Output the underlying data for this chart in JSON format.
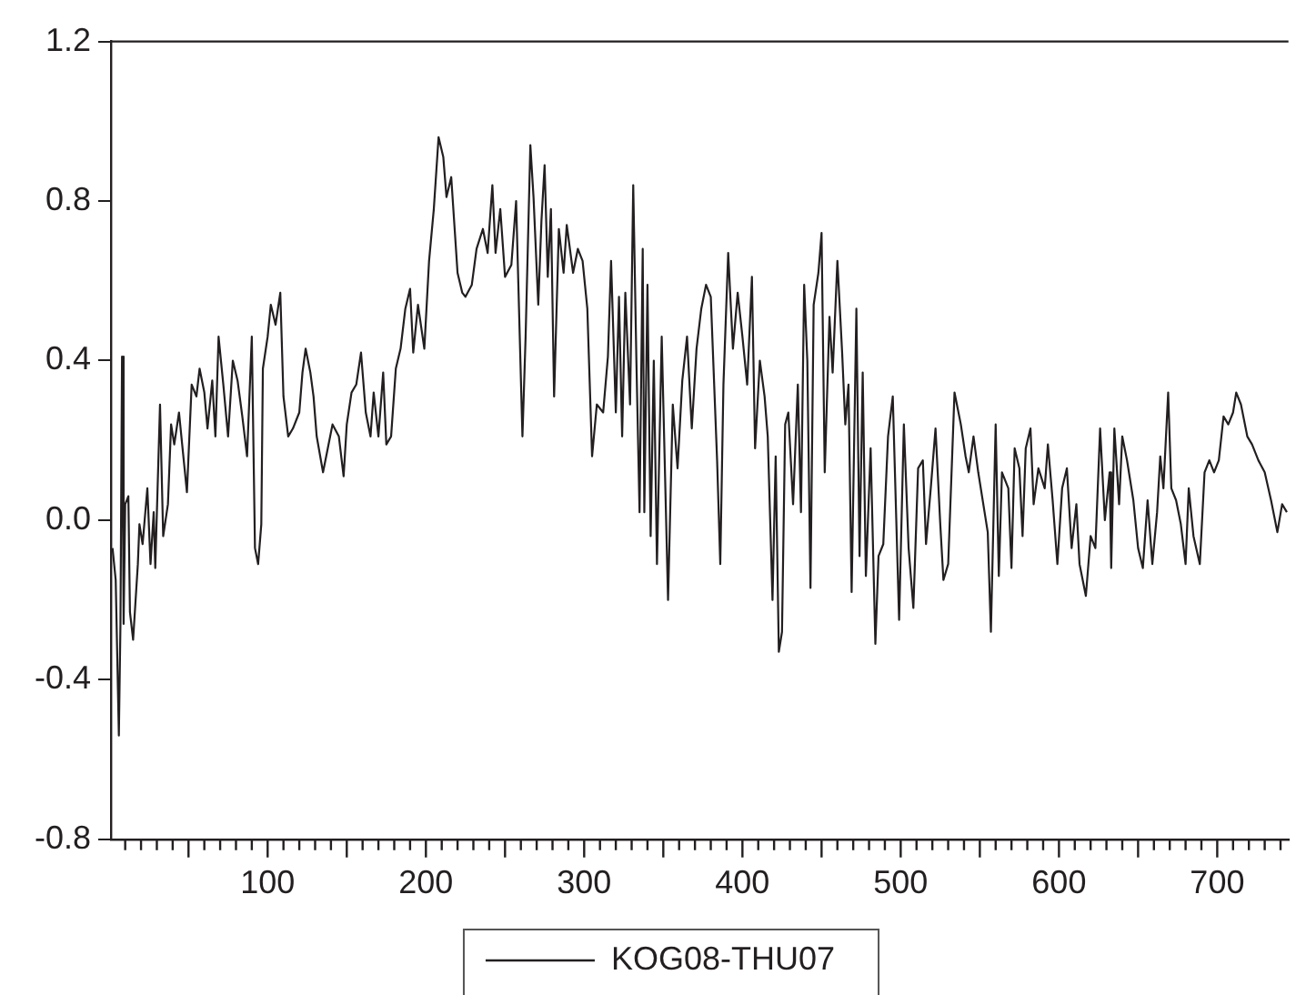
{
  "chart_data": {
    "type": "line",
    "legend": "bottom",
    "grid": false,
    "marker": "none",
    "line_style": "solid",
    "xlim": [
      1,
      745
    ],
    "ylim": [
      -0.8,
      1.2
    ],
    "yticks": [
      {
        "value": -0.8,
        "label": "-0.8"
      },
      {
        "value": -0.4,
        "label": "-0.4"
      },
      {
        "value": 0,
        "label": "0.0"
      },
      {
        "value": 0.4,
        "label": "0.4"
      },
      {
        "value": 0.8,
        "label": "0.8"
      },
      {
        "value": 1.2,
        "label": "1.2"
      }
    ],
    "xticks": [
      {
        "value": 10,
        "label": null
      },
      {
        "value": 20,
        "label": null
      },
      {
        "value": 30,
        "label": null
      },
      {
        "value": 40,
        "label": null
      },
      {
        "value": 50,
        "label": null
      },
      {
        "value": 60,
        "label": null
      },
      {
        "value": 70,
        "label": null
      },
      {
        "value": 80,
        "label": null
      },
      {
        "value": 90,
        "label": null
      },
      100,
      {
        "value": 110,
        "label": null
      },
      {
        "value": 120,
        "label": null
      },
      {
        "value": 130,
        "label": null
      },
      {
        "value": 140,
        "label": null
      },
      {
        "value": 150,
        "label": null
      },
      {
        "value": 160,
        "label": null
      },
      {
        "value": 170,
        "label": null
      },
      {
        "value": 180,
        "label": null
      },
      {
        "value": 190,
        "label": null
      },
      200,
      {
        "value": 210,
        "label": null
      },
      {
        "value": 220,
        "label": null
      },
      {
        "value": 230,
        "label": null
      },
      {
        "value": 240,
        "label": null
      },
      {
        "value": 250,
        "label": null
      },
      {
        "value": 260,
        "label": null
      },
      {
        "value": 270,
        "label": null
      },
      {
        "value": 280,
        "label": null
      },
      {
        "value": 290,
        "label": null
      },
      300,
      {
        "value": 310,
        "label": null
      },
      {
        "value": 320,
        "label": null
      },
      {
        "value": 330,
        "label": null
      },
      {
        "value": 340,
        "label": null
      },
      {
        "value": 350,
        "label": null
      },
      {
        "value": 360,
        "label": null
      },
      {
        "value": 370,
        "label": null
      },
      {
        "value": 380,
        "label": null
      },
      {
        "value": 390,
        "label": null
      },
      400,
      {
        "value": 410,
        "label": null
      },
      {
        "value": 420,
        "label": null
      },
      {
        "value": 430,
        "label": null
      },
      {
        "value": 440,
        "label": null
      },
      {
        "value": 450,
        "label": null
      },
      {
        "value": 460,
        "label": null
      },
      {
        "value": 470,
        "label": null
      },
      {
        "value": 480,
        "label": null
      },
      {
        "value": 490,
        "label": null
      },
      500,
      {
        "value": 510,
        "label": null
      },
      {
        "value": 520,
        "label": null
      },
      {
        "value": 530,
        "label": null
      },
      {
        "value": 540,
        "label": null
      },
      {
        "value": 550,
        "label": null
      },
      {
        "value": 560,
        "label": null
      },
      {
        "value": 570,
        "label": null
      },
      {
        "value": 580,
        "label": null
      },
      {
        "value": 590,
        "label": null
      },
      600,
      {
        "value": 610,
        "label": null
      },
      {
        "value": 620,
        "label": null
      },
      {
        "value": 630,
        "label": null
      },
      {
        "value": 640,
        "label": null
      },
      {
        "value": 650,
        "label": null
      },
      {
        "value": 660,
        "label": null
      },
      {
        "value": 670,
        "label": null
      },
      {
        "value": 680,
        "label": null
      },
      {
        "value": 690,
        "label": null
      },
      700,
      {
        "value": 710,
        "label": null
      },
      {
        "value": 720,
        "label": null
      },
      {
        "value": 730,
        "label": null
      },
      {
        "value": 740,
        "label": null
      }
    ],
    "series": [
      {
        "name": "KOG08-THU07",
        "color": "#231f20",
        "x": [
          2,
          4,
          6,
          7,
          8,
          9,
          10,
          12,
          13,
          15,
          18,
          19,
          21,
          24,
          26,
          28,
          29,
          32,
          34,
          37,
          39,
          41,
          44,
          46,
          49,
          52,
          55,
          57,
          60,
          62,
          65,
          67,
          69,
          72,
          75,
          78,
          81,
          84,
          87,
          90,
          92,
          94,
          96,
          97,
          100,
          102,
          105,
          108,
          110,
          113,
          116,
          120,
          122,
          124,
          127,
          129,
          131,
          135,
          138,
          141,
          145,
          148,
          150,
          153,
          156,
          159,
          162,
          165,
          167,
          170,
          173,
          175,
          178,
          181,
          184,
          187,
          190,
          192,
          195,
          199,
          202,
          205,
          208,
          211,
          213,
          216,
          220,
          223,
          225,
          229,
          232,
          236,
          239,
          242,
          244,
          247,
          250,
          254,
          257,
          261,
          263,
          266,
          268,
          271,
          273,
          275,
          277,
          279,
          281,
          284,
          287,
          289,
          293,
          296,
          299,
          302,
          305,
          308,
          312,
          315,
          317,
          320,
          322,
          324,
          326,
          329,
          331,
          333,
          335,
          337,
          338,
          340,
          342,
          344,
          346,
          349,
          353,
          356,
          359,
          362,
          365,
          368,
          371,
          374,
          377,
          380,
          384,
          386,
          388,
          391,
          394,
          397,
          400,
          403,
          406,
          408,
          411,
          414,
          416,
          419,
          421,
          423,
          425,
          427,
          429,
          432,
          435,
          437,
          439,
          441,
          443,
          445,
          448,
          450,
          452,
          455,
          457,
          460,
          463,
          465,
          467,
          469,
          472,
          474,
          476,
          478,
          481,
          484,
          486,
          489,
          492,
          495,
          499,
          502,
          505,
          508,
          511,
          514,
          516,
          519,
          522,
          525,
          527,
          530,
          534,
          538,
          541,
          543,
          546,
          549,
          553,
          555,
          557,
          560,
          562,
          564,
          568,
          570,
          572,
          575,
          577,
          579,
          582,
          584,
          587,
          591,
          593,
          596,
          599,
          602,
          605,
          608,
          611,
          613,
          617,
          620,
          623,
          626,
          629,
          632,
          633,
          635,
          638,
          640,
          643,
          647,
          650,
          653,
          656,
          659,
          662,
          664,
          666,
          669,
          671,
          674,
          677,
          680,
          682,
          685,
          689,
          692,
          695,
          698,
          701,
          704,
          707,
          710,
          712,
          715,
          719,
          722,
          726,
          730,
          734,
          738,
          741,
          744
        ],
        "values": [
          -0.07,
          -0.15,
          -0.54,
          -0.26,
          0.41,
          -0.26,
          0.04,
          0.06,
          -0.23,
          -0.3,
          -0.11,
          -0.01,
          -0.06,
          0.08,
          -0.11,
          0.02,
          -0.12,
          0.29,
          -0.04,
          0.04,
          0.24,
          0.19,
          0.27,
          0.19,
          0.07,
          0.34,
          0.31,
          0.38,
          0.32,
          0.23,
          0.35,
          0.21,
          0.46,
          0.34,
          0.21,
          0.4,
          0.35,
          0.26,
          0.16,
          0.46,
          -0.07,
          -0.11,
          -0.01,
          0.38,
          0.46,
          0.54,
          0.49,
          0.57,
          0.31,
          0.21,
          0.23,
          0.27,
          0.37,
          0.43,
          0.37,
          0.31,
          0.21,
          0.12,
          0.18,
          0.24,
          0.21,
          0.11,
          0.24,
          0.32,
          0.34,
          0.42,
          0.27,
          0.21,
          0.32,
          0.21,
          0.37,
          0.19,
          0.21,
          0.38,
          0.43,
          0.53,
          0.58,
          0.42,
          0.54,
          0.43,
          0.65,
          0.78,
          0.96,
          0.91,
          0.81,
          0.86,
          0.62,
          0.57,
          0.56,
          0.59,
          0.68,
          0.73,
          0.67,
          0.84,
          0.67,
          0.78,
          0.61,
          0.64,
          0.8,
          0.21,
          0.46,
          0.94,
          0.81,
          0.54,
          0.75,
          0.89,
          0.61,
          0.78,
          0.31,
          0.73,
          0.62,
          0.74,
          0.62,
          0.68,
          0.65,
          0.53,
          0.16,
          0.29,
          0.27,
          0.41,
          0.65,
          0.27,
          0.56,
          0.21,
          0.57,
          0.29,
          0.84,
          0.4,
          0.02,
          0.68,
          0.02,
          0.59,
          -0.04,
          0.4,
          -0.11,
          0.46,
          -0.2,
          0.29,
          0.13,
          0.35,
          0.46,
          0.23,
          0.43,
          0.53,
          0.59,
          0.56,
          0.15,
          -0.11,
          0.34,
          0.67,
          0.43,
          0.57,
          0.46,
          0.34,
          0.61,
          0.18,
          0.4,
          0.31,
          0.21,
          -0.2,
          0.16,
          -0.33,
          -0.28,
          0.24,
          0.27,
          0.04,
          0.34,
          0.02,
          0.59,
          0.4,
          -0.17,
          0.54,
          0.62,
          0.72,
          0.12,
          0.51,
          0.37,
          0.65,
          0.42,
          0.24,
          0.34,
          -0.18,
          0.53,
          -0.09,
          0.37,
          -0.14,
          0.18,
          -0.31,
          -0.09,
          -0.06,
          0.21,
          0.31,
          -0.25,
          0.24,
          -0.07,
          -0.22,
          0.13,
          0.15,
          -0.06,
          0.08,
          0.23,
          -0.01,
          -0.15,
          -0.11,
          0.32,
          0.24,
          0.16,
          0.12,
          0.21,
          0.12,
          0.02,
          -0.03,
          -0.28,
          0.24,
          -0.14,
          0.12,
          0.08,
          -0.12,
          0.18,
          0.13,
          -0.04,
          0.18,
          0.23,
          0.04,
          0.13,
          0.08,
          0.19,
          0.05,
          -0.11,
          0.08,
          0.13,
          -0.07,
          0.04,
          -0.11,
          -0.19,
          -0.04,
          -0.07,
          0.23,
          0.0,
          0.12,
          -0.12,
          0.23,
          0.04,
          0.21,
          0.15,
          0.05,
          -0.07,
          -0.12,
          0.05,
          -0.11,
          0.02,
          0.16,
          0.08,
          0.32,
          0.08,
          0.05,
          -0.01,
          -0.11,
          0.08,
          -0.04,
          -0.11,
          0.12,
          0.15,
          0.12,
          0.15,
          0.26,
          0.24,
          0.27,
          0.32,
          0.29,
          0.21,
          0.19,
          0.15,
          0.12,
          0.05,
          -0.03,
          0.04,
          0.02
        ]
      }
    ]
  }
}
